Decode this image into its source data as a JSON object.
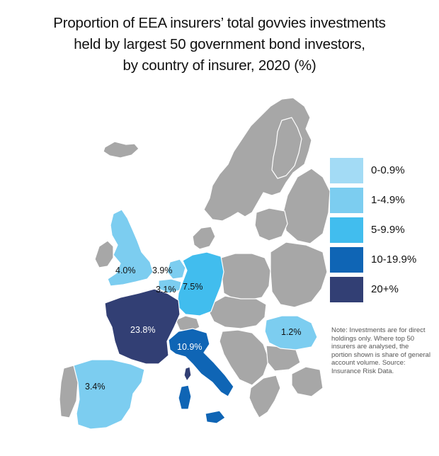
{
  "title": {
    "line1": "Proportion of EEA insurers’ total govvies investments",
    "line2": "held by largest 50 government bond investors,",
    "line3": "by country of insurer, 2020 (%)"
  },
  "colors": {
    "grey": "#a7a7a7",
    "bin_0": "#a3dbf5",
    "bin_1": "#7ccdf0",
    "bin_2": "#41bdee",
    "bin_3": "#0f65b5",
    "bin_4": "#323f74"
  },
  "legend": [
    {
      "label": "0-0.9%",
      "color": "#a3dbf5"
    },
    {
      "label": "1-4.9%",
      "color": "#7ccdf0"
    },
    {
      "label": "5-9.9%",
      "color": "#41bdee"
    },
    {
      "label": "10-19.9%",
      "color": "#0f65b5"
    },
    {
      "label": "20+%",
      "color": "#323f74"
    }
  ],
  "labels": {
    "uk": "4.0%",
    "netherlands": "3.9%",
    "belgium": "3.1%",
    "germany": "7.5%",
    "france": "23.8%",
    "italy": "10.9%",
    "spain": "3.4%",
    "romania": "1.2%"
  },
  "note": "Note: Investments are for direct holdings only. Where top 50 insurers are analysed, the portion shown is share of general account volume. Source: Insurance Risk Data."
}
